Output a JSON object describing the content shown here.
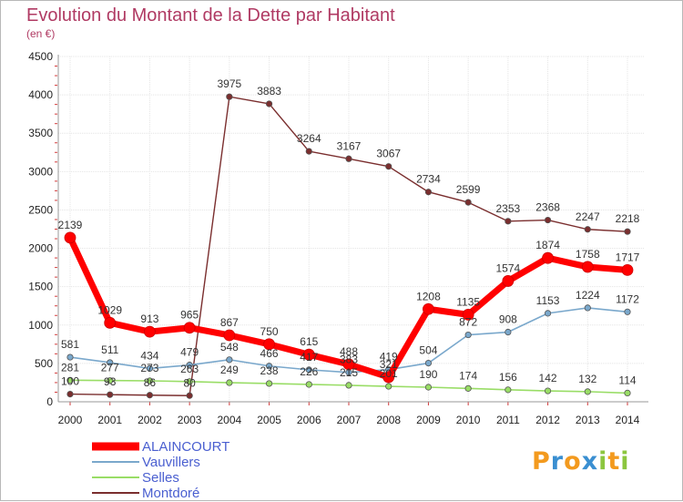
{
  "chart_data": {
    "type": "line",
    "title": "Evolution du Montant de la Dette par Habitant",
    "subtitle": "(en €)",
    "x": [
      2000,
      2001,
      2002,
      2003,
      2004,
      2005,
      2006,
      2007,
      2008,
      2009,
      2010,
      2011,
      2012,
      2013,
      2014
    ],
    "x_tick_labels": [
      "2000",
      "2001",
      "2002",
      "2003",
      "2004",
      "2005",
      "2006",
      "2007",
      "2008",
      "2009",
      "2010",
      "2011",
      "2012",
      "2013",
      "2014"
    ],
    "ylim": [
      0,
      4500
    ],
    "y_ticks": [
      0,
      500,
      1000,
      1500,
      2000,
      2500,
      3000,
      3500,
      4000,
      4500
    ],
    "grid": true,
    "legend_position": "bottom-left",
    "series": [
      {
        "name": "ALAINCOURT",
        "color": "#ff0000",
        "values": [
          2139,
          1029,
          913,
          965,
          867,
          750,
          615,
          488,
          321,
          1208,
          1135,
          1574,
          1874,
          1758,
          1717
        ]
      },
      {
        "name": "Vauvillers",
        "color": "#7aa8cc",
        "values": [
          581,
          511,
          434,
          479,
          548,
          466,
          417,
          383,
          419,
          504,
          872,
          908,
          1153,
          1224,
          1172
        ]
      },
      {
        "name": "Selles",
        "color": "#99dd66",
        "values": [
          281,
          277,
          273,
          263,
          249,
          238,
          226,
          215,
          201,
          190,
          174,
          156,
          142,
          132,
          114
        ]
      },
      {
        "name": "Montdoré",
        "color": "#7a2e2e",
        "values": [
          100,
          93,
          86,
          80,
          3975,
          3883,
          3264,
          3167,
          3067,
          2734,
          2599,
          2353,
          2368,
          2247,
          2218
        ]
      }
    ]
  },
  "logo": {
    "letters": [
      "P",
      "r",
      "o",
      "x",
      "i",
      "t",
      "i"
    ],
    "colors": [
      "#f39a1e",
      "#3a8fd1",
      "#f39a1e",
      "#3a8fd1",
      "#8cc63f",
      "#f39a1e",
      "#8cc63f"
    ]
  }
}
